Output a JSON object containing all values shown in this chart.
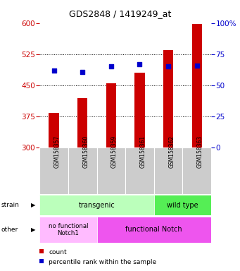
{
  "title": "GDS2848 / 1419249_at",
  "samples": [
    "GSM158357",
    "GSM158360",
    "GSM158359",
    "GSM158361",
    "GSM158362",
    "GSM158363"
  ],
  "bar_values": [
    383,
    420,
    455,
    480,
    535,
    597
  ],
  "percentile_values": [
    62,
    61,
    65,
    67,
    65,
    66
  ],
  "y_min": 300,
  "y_max": 600,
  "y_ticks": [
    300,
    375,
    450,
    525,
    600
  ],
  "y2_ticks": [
    0,
    25,
    50,
    75,
    100
  ],
  "bar_color": "#cc0000",
  "dot_color": "#0000cc",
  "strain_transgenic_label": "transgenic",
  "strain_wildtype_label": "wild type",
  "other_nofunctional_label": "no functional\nNotch1",
  "other_functional_label": "functional Notch",
  "strain_color_transgenic": "#bbffbb",
  "strain_color_wildtype": "#55ee55",
  "other_color_nofunctional": "#ffbbff",
  "other_color_functional": "#ee55ee",
  "tick_color_left": "#cc0000",
  "tick_color_right": "#0000cc",
  "legend_count_label": "count",
  "legend_percentile_label": "percentile rank within the sample",
  "bar_width": 0.35
}
